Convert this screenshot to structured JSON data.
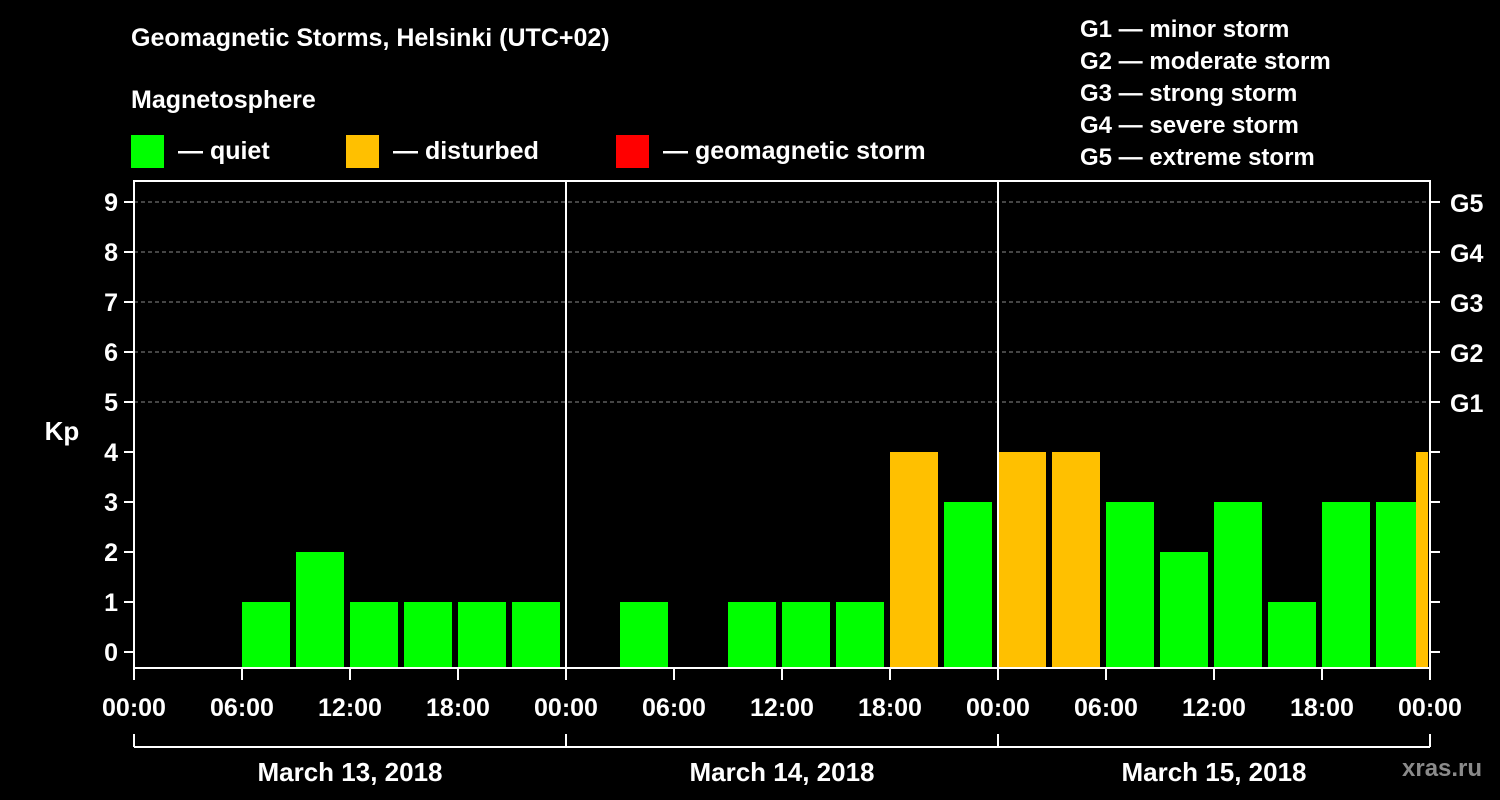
{
  "chart_data": {
    "type": "bar",
    "title": "Geomagnetic Storms, Helsinki (UTC+02)",
    "ylabel": "Kp",
    "ylim": [
      0,
      9
    ],
    "interval_hours": 3,
    "total_hours": 72,
    "yticks": [
      "0",
      "1",
      "2",
      "3",
      "4",
      "5",
      "6",
      "7",
      "8",
      "9"
    ],
    "g_scale": [
      {
        "kp": 5,
        "label": "G1"
      },
      {
        "kp": 6,
        "label": "G2"
      },
      {
        "kp": 7,
        "label": "G3"
      },
      {
        "kp": 8,
        "label": "G4"
      },
      {
        "kp": 9,
        "label": "G5"
      }
    ],
    "x_tick_labels": [
      "00:00",
      "06:00",
      "12:00",
      "18:00",
      "00:00",
      "06:00",
      "12:00",
      "18:00",
      "00:00",
      "06:00",
      "12:00",
      "18:00",
      "00:00"
    ],
    "days": [
      "March 13, 2018",
      "March 14, 2018",
      "March 15, 2018"
    ],
    "bars": [
      {
        "start_hour": 0,
        "kp": 0,
        "status": "quiet"
      },
      {
        "start_hour": 3,
        "kp": 0,
        "status": "quiet"
      },
      {
        "start_hour": 6,
        "kp": 1,
        "status": "quiet"
      },
      {
        "start_hour": 9,
        "kp": 2,
        "status": "quiet"
      },
      {
        "start_hour": 12,
        "kp": 1,
        "status": "quiet"
      },
      {
        "start_hour": 15,
        "kp": 1,
        "status": "quiet"
      },
      {
        "start_hour": 18,
        "kp": 1,
        "status": "quiet"
      },
      {
        "start_hour": 21,
        "kp": 1,
        "status": "quiet"
      },
      {
        "start_hour": 24,
        "kp": 0,
        "status": "quiet"
      },
      {
        "start_hour": 27,
        "kp": 1,
        "status": "quiet"
      },
      {
        "start_hour": 30,
        "kp": 0,
        "status": "quiet"
      },
      {
        "start_hour": 33,
        "kp": 1,
        "status": "quiet"
      },
      {
        "start_hour": 36,
        "kp": 1,
        "status": "quiet"
      },
      {
        "start_hour": 39,
        "kp": 1,
        "status": "quiet"
      },
      {
        "start_hour": 42,
        "kp": 4,
        "status": "disturbed"
      },
      {
        "start_hour": 45,
        "kp": 3,
        "status": "quiet"
      },
      {
        "start_hour": 48,
        "kp": 4,
        "status": "disturbed"
      },
      {
        "start_hour": 51,
        "kp": 4,
        "status": "disturbed"
      },
      {
        "start_hour": 54,
        "kp": 3,
        "status": "quiet"
      },
      {
        "start_hour": 57,
        "kp": 2,
        "status": "quiet"
      },
      {
        "start_hour": 60,
        "kp": 3,
        "status": "quiet"
      },
      {
        "start_hour": 63,
        "kp": 1,
        "status": "quiet"
      },
      {
        "start_hour": 66,
        "kp": 3,
        "status": "quiet"
      },
      {
        "start_hour": 69,
        "kp": 3,
        "status": "quiet"
      },
      {
        "start_hour": 72,
        "kp": 4,
        "status": "disturbed",
        "partial": true
      }
    ]
  },
  "magnetosphere": {
    "title": "Magnetosphere",
    "quiet_label": "— quiet",
    "disturbed_label": "— disturbed",
    "storm_label": "— geomagnetic storm"
  },
  "colors": {
    "quiet": "#00ff00",
    "disturbed": "#ffc000",
    "storm": "#ff0000",
    "grid": "#8a8a8a",
    "axis": "#ffffff"
  },
  "storm_scale": [
    "G1 — minor storm",
    "G2 — moderate storm",
    "G3 — strong storm",
    "G4 — severe storm",
    "G5 — extreme storm"
  ],
  "watermark": "xras.ru"
}
